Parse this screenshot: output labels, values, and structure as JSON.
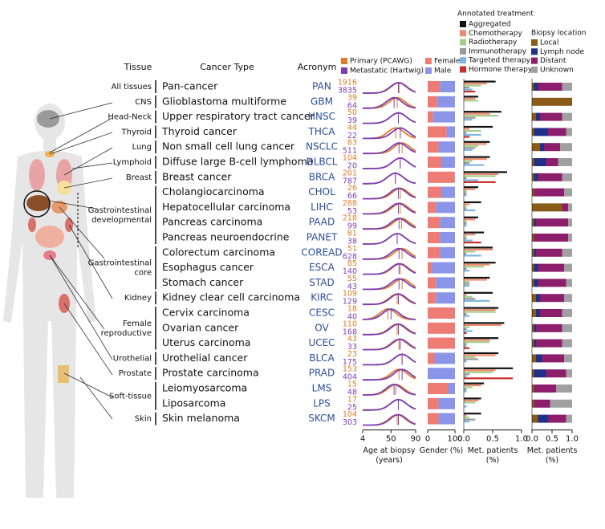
{
  "chart_data": {
    "type": "panel",
    "headers": {
      "tissue": "Tissue",
      "cancer_type": "Cancer Type",
      "acronym": "Acronym"
    },
    "age_series": [
      {
        "name": "Primary (PCAWG)",
        "color": "#e07b28"
      },
      {
        "name": "Metastatic (Hartwig)",
        "color": "#7b3fb5"
      }
    ],
    "gender_series": [
      {
        "name": "Female",
        "color": "#ef7c74"
      },
      {
        "name": "Male",
        "color": "#8b95e8"
      }
    ],
    "treatment": {
      "title": "Annotated treatment",
      "series": [
        {
          "name": "Aggregated",
          "color": "#111111"
        },
        {
          "name": "Chemotherapy",
          "color": "#ef8c70"
        },
        {
          "name": "Radiotherapy",
          "color": "#a6cf8e"
        },
        {
          "name": "Immunotherapy",
          "color": "#9a9a9a"
        },
        {
          "name": "Targeted therapy",
          "color": "#7db6e0"
        },
        {
          "name": "Hormone therapy",
          "color": "#c9302c"
        }
      ]
    },
    "biopsy": {
      "title": "Biopsy location",
      "series": [
        {
          "name": "Local",
          "color": "#8a5a18"
        },
        {
          "name": "Lymph node",
          "color": "#1f2f8a"
        },
        {
          "name": "Distant",
          "color": "#8c1e6c"
        },
        {
          "name": "Unknown",
          "color": "#a0a0a0"
        }
      ]
    },
    "axes": {
      "age": {
        "label": [
          "Age at biopsy",
          "(years)"
        ],
        "xlim": [
          4,
          90
        ],
        "xticks": [
          4,
          50,
          90
        ]
      },
      "gender": {
        "label": [
          "Gender (%)"
        ],
        "xlim": [
          0,
          100
        ],
        "xticks": [
          0,
          100
        ]
      },
      "treatment": {
        "label": [
          "Met. patients",
          "(%)"
        ],
        "xlim": [
          0,
          1
        ],
        "xticks": [
          {
            "value": 0,
            "label": "0.0"
          },
          {
            "value": 0.5,
            "label": "0.5"
          },
          {
            "value": 1,
            "label": "1.0"
          }
        ]
      },
      "biopsy": {
        "label": [
          "Met. patients",
          "(%)"
        ],
        "xlim": [
          0,
          1
        ],
        "xticks": [
          {
            "value": 0,
            "label": "0.0"
          },
          {
            "value": 0.5,
            "label": "0.5"
          },
          {
            "value": 1,
            "label": "1.0"
          }
        ]
      }
    },
    "groups": [
      {
        "tissue": [
          "All tissues"
        ],
        "rows": [
          {
            "cancer_type": "Pan-cancer",
            "acronym": "PAN",
            "n_primary": 1916,
            "n_metastatic": 3835,
            "age_median": [
              63,
              62
            ],
            "gender": [
              45,
              55
            ],
            "treatment": [
              0.55,
              0.4,
              0.3,
              0.1,
              0.15,
              0.2
            ],
            "biopsy": [
              0.05,
              0.1,
              0.6,
              0.25
            ]
          }
        ]
      },
      {
        "tissue": [
          "CNS"
        ],
        "rows": [
          {
            "cancer_type": "Glioblastoma multiforme",
            "acronym": "GBM",
            "n_primary": 39,
            "n_metastatic": 64,
            "age_median": [
              60,
              55
            ],
            "gender": [
              35,
              65
            ],
            "treatment": [
              0.25,
              0.2,
              0.25,
              0,
              0,
              0
            ],
            "biopsy": [
              1,
              0,
              0,
              0
            ]
          }
        ]
      },
      {
        "tissue": [
          "Head-Neck"
        ],
        "rows": [
          {
            "cancer_type": "Upper respiratory tract cancer",
            "acronym": "HNSC",
            "n_primary": 50,
            "n_metastatic": 39,
            "age_median": [
              62,
              62
            ],
            "gender": [
              20,
              80
            ],
            "treatment": [
              0.65,
              0.45,
              0.6,
              0.2,
              0.15,
              0
            ],
            "biopsy": [
              0.1,
              0.1,
              0.55,
              0.25
            ]
          }
        ]
      },
      {
        "tissue": [
          "Thyroid"
        ],
        "rows": [
          {
            "cancer_type": "Thyroid cancer",
            "acronym": "THCA",
            "n_primary": 44,
            "n_metastatic": 22,
            "age_median": [
              58,
              65
            ],
            "gender": [
              70,
              30
            ],
            "treatment": [
              0.5,
              0.1,
              0.3,
              0.05,
              0.3,
              0.1
            ],
            "biopsy": [
              0.05,
              0.35,
              0.45,
              0.15
            ]
          }
        ]
      },
      {
        "tissue": [
          "Lung"
        ],
        "rows": [
          {
            "cancer_type": "Non small cell lung cancer",
            "acronym": "NSCLC",
            "n_primary": 83,
            "n_metastatic": 511,
            "age_median": [
              68,
              63
            ],
            "gender": [
              40,
              60
            ],
            "treatment": [
              0.45,
              0.4,
              0.25,
              0.2,
              0.15,
              0
            ],
            "biopsy": [
              0.2,
              0.1,
              0.4,
              0.3
            ]
          }
        ]
      },
      {
        "tissue": [
          "Lymphoid"
        ],
        "rows": [
          {
            "cancer_type": "Diffuse large B-cell lymphoma",
            "acronym": "DLBCL",
            "n_primary": 104,
            "n_metastatic": 20,
            "age_median": [
              65,
              65
            ],
            "gender": [
              50,
              50
            ],
            "treatment": [
              0.45,
              0.4,
              0.15,
              0.1,
              0.35,
              0
            ],
            "biopsy": [
              0.05,
              0.3,
              0.3,
              0.35
            ]
          }
        ]
      },
      {
        "tissue": [
          "Breast"
        ],
        "rows": [
          {
            "cancer_type": "Breast cancer",
            "acronym": "BRCA",
            "n_primary": 201,
            "n_metastatic": 787,
            "age_median": [
              57,
              57
            ],
            "gender": [
              99,
              1
            ],
            "treatment": [
              0.75,
              0.6,
              0.55,
              0.05,
              0.25,
              0.55
            ],
            "biopsy": [
              0.05,
              0.1,
              0.6,
              0.25
            ]
          }
        ]
      },
      {
        "tissue": [
          "Gastrointestinal",
          "developmental"
        ],
        "rows": [
          {
            "cancer_type": "Cholangiocarcinoma",
            "acronym": "CHOL",
            "n_primary": 26,
            "n_metastatic": 66,
            "age_median": [
              65,
              62
            ],
            "gender": [
              50,
              50
            ],
            "treatment": [
              0.25,
              0.2,
              0.05,
              0.05,
              0.05,
              0
            ],
            "biopsy": [
              0.05,
              0,
              0.75,
              0.2
            ]
          },
          {
            "cancer_type": "Hepatocellular carcinoma",
            "acronym": "LIHC",
            "n_primary": 288,
            "n_metastatic": 53,
            "age_median": [
              65,
              62
            ],
            "gender": [
              30,
              70
            ],
            "treatment": [
              0.3,
              0.1,
              0.05,
              0.05,
              0.2,
              0
            ],
            "biopsy": [
              0.75,
              0,
              0.15,
              0.1
            ]
          },
          {
            "cancer_type": "Pancreas carcinoma",
            "acronym": "PAAD",
            "n_primary": 218,
            "n_metastatic": 99,
            "age_median": [
              67,
              63
            ],
            "gender": [
              45,
              55
            ],
            "treatment": [
              0.25,
              0.2,
              0.05,
              0.05,
              0.05,
              0
            ],
            "biopsy": [
              0.05,
              0.05,
              0.8,
              0.1
            ]
          },
          {
            "cancer_type": "Pancreas neuroendocrine",
            "acronym": "PANET",
            "n_primary": 81,
            "n_metastatic": 38,
            "age_median": [
              60,
              60
            ],
            "gender": [
              45,
              55
            ],
            "treatment": [
              0.35,
              0.2,
              0.05,
              0.05,
              0.15,
              0.3
            ],
            "biopsy": [
              0.05,
              0,
              0.85,
              0.1
            ]
          }
        ]
      },
      {
        "tissue": [
          "Gastrointestinal",
          "core"
        ],
        "rows": [
          {
            "cancer_type": "Colorectum carcinoma",
            "acronym": "COREAD",
            "n_primary": 51,
            "n_metastatic": 628,
            "age_median": [
              68,
              63
            ],
            "gender": [
              45,
              55
            ],
            "treatment": [
              0.5,
              0.5,
              0.2,
              0.05,
              0.3,
              0
            ],
            "biopsy": [
              0.05,
              0.05,
              0.65,
              0.25
            ]
          },
          {
            "cancer_type": "Esophagus cancer",
            "acronym": "ESCA",
            "n_primary": 85,
            "n_metastatic": 140,
            "age_median": [
              65,
              63
            ],
            "gender": [
              15,
              85
            ],
            "treatment": [
              0.55,
              0.45,
              0.35,
              0.05,
              0.1,
              0
            ],
            "biopsy": [
              0.05,
              0.1,
              0.65,
              0.2
            ]
          },
          {
            "cancer_type": "Stomach cancer",
            "acronym": "STAD",
            "n_primary": 55,
            "n_metastatic": 43,
            "age_median": [
              68,
              63
            ],
            "gender": [
              30,
              70
            ],
            "treatment": [
              0.45,
              0.4,
              0.1,
              0.1,
              0.1,
              0
            ],
            "biopsy": [
              0.05,
              0.1,
              0.7,
              0.15
            ]
          }
        ]
      },
      {
        "tissue": [
          "Kidney"
        ],
        "rows": [
          {
            "cancer_type": "Kidney clear cell carcinoma",
            "acronym": "KIRC",
            "n_primary": 109,
            "n_metastatic": 129,
            "age_median": [
              60,
              62
            ],
            "gender": [
              30,
              70
            ],
            "treatment": [
              0.5,
              0.05,
              0.15,
              0.2,
              0.45,
              0
            ],
            "biopsy": [
              0.1,
              0.1,
              0.6,
              0.2
            ]
          }
        ]
      },
      {
        "tissue": [
          "Female",
          "reproductive"
        ],
        "rows": [
          {
            "cancer_type": "Cervix carcinoma",
            "acronym": "CESC",
            "n_primary": 18,
            "n_metastatic": 40,
            "age_median": [
              45,
              50
            ],
            "gender": [
              100,
              0
            ],
            "treatment": [
              0.6,
              0.55,
              0.55,
              0.05,
              0.1,
              0
            ],
            "biopsy": [
              0.1,
              0.1,
              0.55,
              0.25
            ]
          },
          {
            "cancer_type": "Ovarian cancer",
            "acronym": "OV",
            "n_primary": 110,
            "n_metastatic": 168,
            "age_median": [
              60,
              62
            ],
            "gender": [
              100,
              0
            ],
            "treatment": [
              0.7,
              0.65,
              0.1,
              0.05,
              0.15,
              0.05
            ],
            "biopsy": [
              0.05,
              0.05,
              0.65,
              0.25
            ]
          },
          {
            "cancer_type": "Uterus carcinoma",
            "acronym": "UCEC",
            "n_primary": 43,
            "n_metastatic": 33,
            "age_median": [
              63,
              65
            ],
            "gender": [
              100,
              0
            ],
            "treatment": [
              0.6,
              0.45,
              0.45,
              0.05,
              0.05,
              0.1
            ],
            "biopsy": [
              0.05,
              0.05,
              0.65,
              0.25
            ]
          }
        ]
      },
      {
        "tissue": [
          "Urothelial"
        ],
        "rows": [
          {
            "cancer_type": "Urothelial cancer",
            "acronym": "BLCA",
            "n_primary": 23,
            "n_metastatic": 175,
            "age_median": [
              68,
              68
            ],
            "gender": [
              25,
              75
            ],
            "treatment": [
              0.6,
              0.55,
              0.2,
              0.25,
              0.05,
              0
            ],
            "biopsy": [
              0.1,
              0.15,
              0.55,
              0.2
            ]
          }
        ]
      },
      {
        "tissue": [
          "Prostate"
        ],
        "rows": [
          {
            "cancer_type": "Prostate carcinoma",
            "acronym": "PRAD",
            "n_primary": 153,
            "n_metastatic": 404,
            "age_median": [
              63,
              68
            ],
            "gender": [
              0,
              100
            ],
            "treatment": [
              0.85,
              0.55,
              0.5,
              0.1,
              0.05,
              0.85
            ],
            "biopsy": [
              0.05,
              0.3,
              0.5,
              0.15
            ]
          }
        ]
      },
      {
        "tissue": [
          "Soft-tissue"
        ],
        "rows": [
          {
            "cancer_type": "Leiomyosarcoma",
            "acronym": "LMS",
            "n_primary": 15,
            "n_metastatic": 48,
            "age_median": [
              58,
              55
            ],
            "gender": [
              75,
              25
            ],
            "treatment": [
              0.35,
              0.3,
              0.15,
              0.05,
              0.05,
              0
            ],
            "biopsy": [
              0.05,
              0,
              0.55,
              0.4
            ]
          },
          {
            "cancer_type": "Liposarcoma",
            "acronym": "LPS",
            "n_primary": 17,
            "n_metastatic": 25,
            "age_median": [
              62,
              62
            ],
            "gender": [
              40,
              60
            ],
            "treatment": [
              0.3,
              0.25,
              0.2,
              0,
              0.05,
              0
            ],
            "biopsy": [
              0.05,
              0,
              0.4,
              0.55
            ]
          }
        ]
      },
      {
        "tissue": [
          "Skin"
        ],
        "rows": [
          {
            "cancer_type": "Skin melanoma",
            "acronym": "SKCM",
            "n_primary": 104,
            "n_metastatic": 303,
            "age_median": [
              60,
              62
            ],
            "gender": [
              40,
              60
            ],
            "treatment": [
              0.3,
              0.05,
              0.1,
              0.2,
              0.1,
              0
            ],
            "biopsy": [
              0.15,
              0.25,
              0.45,
              0.15
            ]
          }
        ]
      }
    ]
  }
}
